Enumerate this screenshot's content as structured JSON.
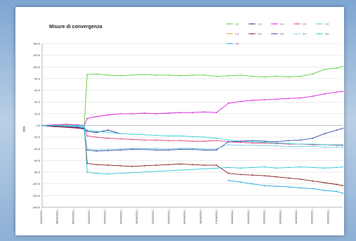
{
  "chart_data": {
    "type": "line",
    "title": "Misure di convergenza",
    "xlabel": "",
    "ylabel": "mm",
    "ylim": [
      -140,
      140
    ],
    "yticks": [
      140.0,
      120.0,
      100.0,
      80.0,
      60.0,
      40.0,
      20.0,
      0.0,
      -20.0,
      -40.0,
      -60.0,
      -80.0,
      -100.0,
      -120.0,
      -140.0
    ],
    "ytick_labels": [
      "140.0",
      "120.0",
      "100.0",
      "80.0",
      "60.0",
      "40.0",
      "20.0",
      "0.0",
      "-20.0",
      "-40.0",
      "-60.0",
      "-80.0",
      "-100.0",
      "-120.0",
      "-140.0"
    ],
    "x_range": [
      0,
      100
    ],
    "x_tick_positions": [
      0,
      5.3,
      10.6,
      15.9,
      21.2,
      26.5,
      31.8,
      37.1,
      42.4,
      47.7,
      53.0,
      58.3,
      63.6,
      68.9,
      74.2,
      79.5,
      84.8,
      90.1,
      95.4
    ],
    "x_tick_labels": [
      "19/01/2012",
      "28/01/2012",
      "06/02/2012",
      "15/02/2012",
      "24/02/2012",
      "04/03/2012",
      "13/03/2012",
      "22/03/2012",
      "31/03/2012",
      "09/04/2012",
      "18/04/2012",
      "27/04/2012",
      "06/05/2012",
      "15/05/2012",
      "24/05/2012",
      "02/06/2012",
      "11/06/2012",
      "20/06/2012",
      "29/06/2012"
    ],
    "grid": true,
    "legend_position": "top-right",
    "series": [
      {
        "name": "1-2",
        "color": "#5ccf3a",
        "x": [
          0,
          4,
          8,
          12,
          14,
          15,
          18,
          22,
          26,
          30,
          34,
          38,
          42,
          46,
          50,
          54,
          58,
          62,
          66,
          70,
          74,
          78,
          82,
          86,
          90,
          94,
          98,
          100
        ],
        "y": [
          0,
          0,
          0,
          0,
          0,
          87,
          88,
          86,
          85,
          86,
          87,
          86,
          86,
          85,
          86,
          86,
          84,
          85,
          86,
          84,
          83,
          84,
          83,
          84,
          88,
          96,
          98,
          101
        ]
      },
      {
        "name": "1-3",
        "color": "#2a2f8a",
        "x": [
          0,
          4,
          8,
          12,
          14,
          15,
          18,
          22,
          26
        ],
        "y": [
          0,
          -2,
          -3,
          -5,
          -6,
          -10,
          -12,
          -8,
          -14
        ]
      },
      {
        "name": "1-4",
        "color": "#d81fd8",
        "x": [
          0,
          4,
          8,
          12,
          14,
          15,
          18,
          22,
          26,
          30,
          34,
          38,
          42,
          46,
          50,
          54,
          58,
          62,
          66,
          70,
          74,
          78,
          82,
          86,
          90,
          94,
          98,
          100
        ],
        "y": [
          0,
          1,
          2,
          1,
          0,
          12,
          15,
          18,
          20,
          20,
          21,
          20,
          21,
          22,
          22,
          23,
          22,
          38,
          41,
          43,
          44,
          45,
          46,
          47,
          50,
          54,
          57,
          58
        ]
      },
      {
        "name": "1-5",
        "color": "#e0407a",
        "x": [
          0,
          4,
          8,
          12,
          14,
          15,
          18,
          22,
          26,
          30,
          34,
          38,
          42,
          46,
          50,
          54,
          58,
          62,
          66,
          70,
          74,
          78,
          82,
          86,
          90,
          94,
          98,
          100
        ],
        "y": [
          0,
          -1,
          -3,
          -5,
          -4,
          -18,
          -20,
          -22,
          -23,
          -24,
          -25,
          -25,
          -26,
          -26,
          -27,
          -27,
          -26,
          -28,
          -29,
          -30,
          -30,
          -31,
          -32,
          -32,
          -33,
          -33,
          -34,
          -34
        ]
      },
      {
        "name": "1-6",
        "color": "#40d4d8",
        "x": [
          0,
          4,
          8,
          12,
          14,
          15,
          18,
          22,
          26,
          30,
          34,
          38,
          42,
          46,
          50,
          54,
          58,
          62,
          66,
          70,
          74,
          78,
          82,
          86,
          90,
          94,
          98,
          100
        ],
        "y": [
          0,
          0,
          -1,
          -2,
          -3,
          -8,
          -10,
          -12,
          -14,
          -15,
          -16,
          -17,
          -18,
          -18,
          -19,
          -20,
          -22,
          -25,
          -27,
          -28,
          -29,
          -30,
          -31,
          -32,
          -32,
          -33,
          -33,
          -33
        ]
      },
      {
        "name": "2-4",
        "color": "#d9a53c",
        "x": [
          0,
          4,
          8,
          12,
          14
        ],
        "y": [
          0,
          0,
          1,
          0,
          -1
        ]
      },
      {
        "name": "2-5",
        "color": "#8a1f1f",
        "x": [
          0,
          4,
          8,
          12,
          14,
          15,
          18,
          22,
          26,
          30,
          34,
          38,
          42,
          46,
          50,
          54,
          58,
          62,
          66,
          70,
          74,
          78,
          82,
          86,
          90,
          94,
          98,
          100
        ],
        "y": [
          0,
          -2,
          -3,
          -4,
          -5,
          -65,
          -67,
          -68,
          -69,
          -70,
          -69,
          -68,
          -67,
          -66,
          -67,
          -68,
          -68,
          -82,
          -84,
          -85,
          -86,
          -88,
          -90,
          -92,
          -95,
          -98,
          -101,
          -103
        ]
      },
      {
        "name": "2-6",
        "color": "#3b4fa8",
        "x": [
          0,
          4,
          8,
          12,
          14,
          15,
          18,
          22,
          26,
          30,
          34,
          38,
          42,
          46,
          50,
          54,
          58,
          62,
          66,
          70,
          74,
          78,
          82,
          86,
          90,
          94,
          98,
          100
        ],
        "y": [
          0,
          -1,
          -2,
          -3,
          -5,
          -42,
          -44,
          -43,
          -42,
          -41,
          -41,
          -42,
          -42,
          -41,
          -41,
          -42,
          -42,
          -28,
          -27,
          -26,
          -27,
          -28,
          -26,
          -25,
          -22,
          -14,
          -8,
          -5
        ]
      },
      {
        "name": "3-4",
        "color": "#7fd0ec",
        "x": [
          0,
          4,
          8,
          12,
          14,
          15,
          18,
          22,
          26,
          30,
          34,
          38,
          42,
          46,
          50,
          54,
          58,
          62,
          66,
          70,
          74,
          78,
          82,
          86,
          90,
          94,
          98,
          100
        ],
        "y": [
          0,
          0,
          -1,
          -1,
          -2,
          -40,
          -42,
          -41,
          -40,
          -39,
          -40,
          -39,
          -40,
          -39,
          -39,
          -40,
          -40,
          -33,
          -34,
          -34,
          -35,
          -35,
          -36,
          -36,
          -36,
          -37,
          -37,
          -37
        ]
      },
      {
        "name": "3-5",
        "color": "#2fc8d8",
        "x": [
          0,
          4,
          8,
          12,
          14,
          15,
          18,
          22,
          62,
          66,
          70,
          74,
          78,
          82,
          86,
          90,
          94,
          98,
          100
        ],
        "y": [
          0,
          0,
          0,
          0,
          0,
          -80,
          -82,
          -83,
          -72,
          -73,
          -72,
          -71,
          -73,
          -72,
          -71,
          -72,
          -73,
          -72,
          -71
        ]
      },
      {
        "name": "4-5",
        "color": "#1fa8e0",
        "x": [
          62,
          66,
          70,
          74,
          78,
          82,
          86,
          90,
          94,
          98,
          100
        ],
        "y": [
          -94,
          -97,
          -100,
          -103,
          -104,
          -105,
          -107,
          -108,
          -111,
          -113,
          -116
        ]
      }
    ]
  }
}
